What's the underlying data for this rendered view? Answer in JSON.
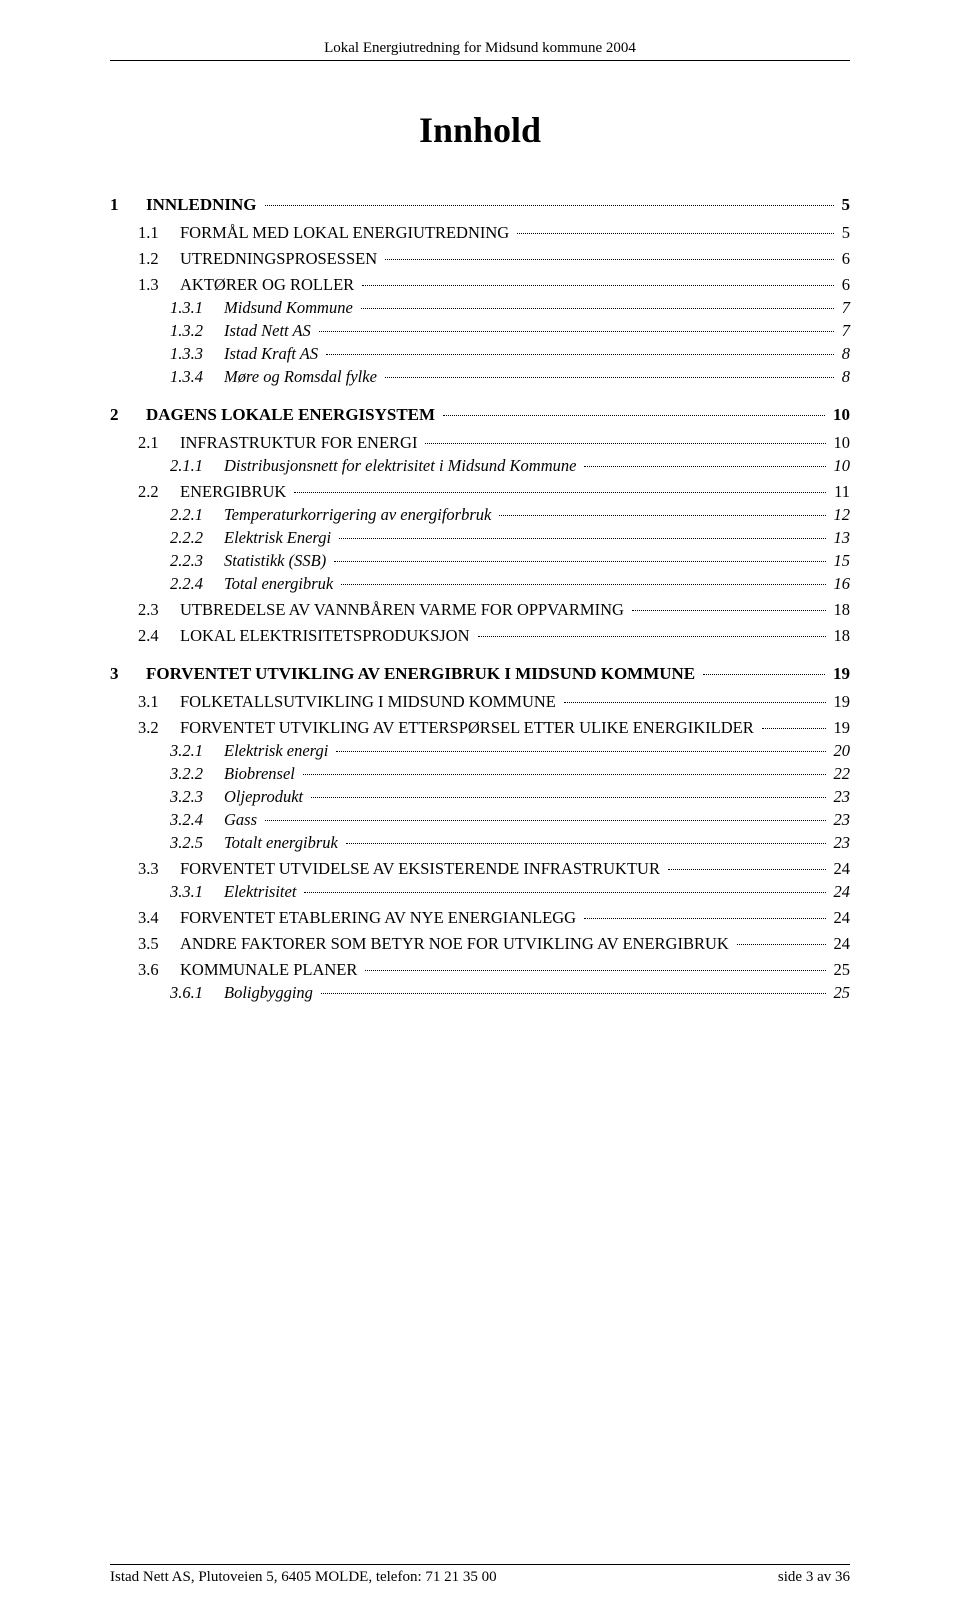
{
  "header": "Lokal Energiutredning for Midsund kommune 2004",
  "title": "Innhold",
  "toc": [
    {
      "lvl": 1,
      "num": "1",
      "text": "INNLEDNING",
      "page": "5"
    },
    {
      "lvl": 2,
      "num": "1.1",
      "text": "FORMÅL MED LOKAL ENERGIUTREDNING",
      "smallcaps": true,
      "page": "5"
    },
    {
      "lvl": 2,
      "num": "1.2",
      "text": "UTREDNINGSPROSESSEN",
      "smallcaps": true,
      "page": "6"
    },
    {
      "lvl": 2,
      "num": "1.3",
      "text": "AKTØRER OG ROLLER",
      "smallcaps": true,
      "page": "6"
    },
    {
      "lvl": 3,
      "num": "1.3.1",
      "text": "Midsund Kommune",
      "page": "7"
    },
    {
      "lvl": 3,
      "num": "1.3.2",
      "text": "Istad Nett AS",
      "page": "7"
    },
    {
      "lvl": 3,
      "num": "1.3.3",
      "text": "Istad Kraft AS",
      "page": "8"
    },
    {
      "lvl": 3,
      "num": "1.3.4",
      "text": "Møre og Romsdal fylke",
      "page": "8"
    },
    {
      "lvl": 1,
      "num": "2",
      "text": "DAGENS LOKALE ENERGISYSTEM",
      "page": "10"
    },
    {
      "lvl": 2,
      "num": "2.1",
      "text": "INFRASTRUKTUR FOR ENERGI",
      "smallcaps": true,
      "page": "10"
    },
    {
      "lvl": 3,
      "num": "2.1.1",
      "text": "Distribusjonsnett for elektrisitet i Midsund Kommune",
      "page": "10"
    },
    {
      "lvl": 2,
      "num": "2.2",
      "text": "ENERGIBRUK",
      "smallcaps": true,
      "page": "11"
    },
    {
      "lvl": 3,
      "num": "2.2.1",
      "text": "Temperaturkorrigering av energiforbruk",
      "page": "12"
    },
    {
      "lvl": 3,
      "num": "2.2.2",
      "text": "Elektrisk Energi",
      "page": "13"
    },
    {
      "lvl": 3,
      "num": "2.2.3",
      "text": "Statistikk (SSB)",
      "page": "15"
    },
    {
      "lvl": 3,
      "num": "2.2.4",
      "text": "Total energibruk",
      "page": "16"
    },
    {
      "lvl": 2,
      "num": "2.3",
      "text": "UTBREDELSE AV VANNBÅREN VARME FOR OPPVARMING",
      "smallcaps": true,
      "page": "18"
    },
    {
      "lvl": 2,
      "num": "2.4",
      "text": "LOKAL ELEKTRISITETSPRODUKSJON",
      "smallcaps": true,
      "page": "18"
    },
    {
      "lvl": 1,
      "num": "3",
      "text": "FORVENTET UTVIKLING AV ENERGIBRUK I MIDSUND KOMMUNE",
      "page": "19"
    },
    {
      "lvl": 2,
      "num": "3.1",
      "text": "FOLKETALLSUTVIKLING I MIDSUND KOMMUNE",
      "smallcaps": true,
      "page": "19"
    },
    {
      "lvl": 2,
      "num": "3.2",
      "text": "FORVENTET UTVIKLING AV ETTERSPØRSEL ETTER ULIKE ENERGIKILDER",
      "smallcaps": true,
      "page": "19"
    },
    {
      "lvl": 3,
      "num": "3.2.1",
      "text": "Elektrisk energi",
      "page": "20"
    },
    {
      "lvl": 3,
      "num": "3.2.2",
      "text": "Biobrensel",
      "page": "22"
    },
    {
      "lvl": 3,
      "num": "3.2.3",
      "text": "Oljeprodukt",
      "page": "23"
    },
    {
      "lvl": 3,
      "num": "3.2.4",
      "text": "Gass",
      "page": "23"
    },
    {
      "lvl": 3,
      "num": "3.2.5",
      "text": "Totalt energibruk",
      "page": "23"
    },
    {
      "lvl": 2,
      "num": "3.3",
      "text": "FORVENTET UTVIDELSE AV EKSISTERENDE INFRASTRUKTUR",
      "smallcaps": true,
      "page": "24"
    },
    {
      "lvl": 3,
      "num": "3.3.1",
      "text": "Elektrisitet",
      "page": "24"
    },
    {
      "lvl": 2,
      "num": "3.4",
      "text": "FORVENTET ETABLERING AV NYE ENERGIANLEGG",
      "smallcaps": true,
      "page": "24"
    },
    {
      "lvl": 2,
      "num": "3.5",
      "text": "ANDRE FAKTORER SOM BETYR NOE FOR UTVIKLING AV ENERGIBRUK",
      "smallcaps": true,
      "page": "24"
    },
    {
      "lvl": 2,
      "num": "3.6",
      "text": "KOMMUNALE PLANER",
      "smallcaps": true,
      "page": "25"
    },
    {
      "lvl": 3,
      "num": "3.6.1",
      "text": "Boligbygging",
      "page": "25"
    }
  ],
  "footer": {
    "left": "Istad Nett AS, Plutoveien 5, 6405 MOLDE, telefon: 71 21 35 00",
    "right": "side 3 av 36"
  }
}
